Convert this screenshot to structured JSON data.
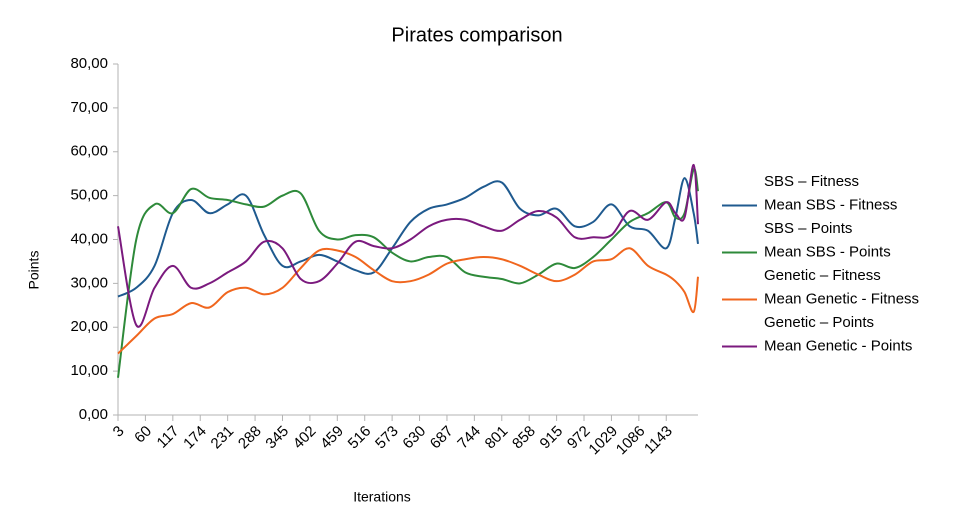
{
  "chart_data": {
    "type": "line",
    "title": "Pirates comparison",
    "x_label": "Iterations",
    "y_label": "Points",
    "x": [
      3,
      41,
      79,
      117,
      155,
      193,
      231,
      269,
      307,
      345,
      383,
      421,
      459,
      497,
      535,
      573,
      611,
      649,
      687,
      725,
      763,
      801,
      839,
      877,
      915,
      953,
      991,
      1029,
      1067,
      1105,
      1143,
      1162,
      1181,
      1200,
      1209
    ],
    "series": [
      {
        "name": "SBS – Fitness",
        "color": "#ffffff",
        "values": [
          null,
          null,
          null,
          null,
          null,
          null,
          null,
          null,
          null,
          null,
          null,
          null,
          null,
          null,
          null,
          null,
          null,
          null,
          null,
          null,
          null,
          null,
          null,
          null,
          null,
          null,
          null,
          null,
          null,
          null,
          null,
          null,
          null,
          null,
          null
        ]
      },
      {
        "name": "Mean SBS - Fitness",
        "color": "#1f5a8f",
        "values": [
          27,
          29,
          34,
          46,
          49,
          46,
          48,
          50,
          41,
          34,
          35,
          36.5,
          35,
          33,
          32.5,
          38,
          44,
          47,
          48,
          49.5,
          52,
          53,
          47,
          45.5,
          47,
          43,
          44,
          48,
          43,
          42,
          38,
          45,
          54,
          46,
          39
        ]
      },
      {
        "name": "SBS – Points",
        "color": "#ffffff",
        "values": [
          null,
          null,
          null,
          null,
          null,
          null,
          null,
          null,
          null,
          null,
          null,
          null,
          null,
          null,
          null,
          null,
          null,
          null,
          null,
          null,
          null,
          null,
          null,
          null,
          null,
          null,
          null,
          null,
          null,
          null,
          null,
          null,
          null,
          null,
          null
        ]
      },
      {
        "name": "Mean SBS - Points",
        "color": "#2e8a3a",
        "values": [
          8.5,
          40,
          48,
          46,
          51.5,
          49.5,
          49,
          48,
          47.5,
          50,
          50.5,
          42,
          40,
          41,
          40.5,
          37,
          35,
          36,
          36,
          32.5,
          31.5,
          31,
          30,
          32,
          34.5,
          33.5,
          36,
          40,
          44,
          46,
          48.5,
          45,
          46,
          56,
          51
        ]
      },
      {
        "name": "Genetic – Fitness",
        "color": "#ffffff",
        "values": [
          null,
          null,
          null,
          null,
          null,
          null,
          null,
          null,
          null,
          null,
          null,
          null,
          null,
          null,
          null,
          null,
          null,
          null,
          null,
          null,
          null,
          null,
          null,
          null,
          null,
          null,
          null,
          null,
          null,
          null,
          null,
          null,
          null,
          null,
          null
        ]
      },
      {
        "name": "Mean Genetic - Fitness",
        "color": "#f0661e",
        "values": [
          14,
          18,
          22,
          23,
          25.5,
          24.5,
          28,
          29,
          27.5,
          29,
          33.5,
          37.5,
          37.5,
          36,
          33,
          30.5,
          30.5,
          32,
          34.5,
          35.5,
          36,
          35.5,
          34,
          32,
          30.5,
          32,
          35,
          35.5,
          38,
          34,
          32,
          30.5,
          28,
          23.5,
          31.5
        ]
      },
      {
        "name": "Genetic – Points",
        "color": "#ffffff",
        "values": [
          null,
          null,
          null,
          null,
          null,
          null,
          null,
          null,
          null,
          null,
          null,
          null,
          null,
          null,
          null,
          null,
          null,
          null,
          null,
          null,
          null,
          null,
          null,
          null,
          null,
          null,
          null,
          null,
          null,
          null,
          null,
          null,
          null,
          null,
          null
        ]
      },
      {
        "name": "Mean Genetic - Points",
        "color": "#7b1a7e",
        "values": [
          43,
          20.5,
          29,
          34,
          29,
          30,
          32.5,
          35,
          39.5,
          38,
          31,
          30.5,
          34.5,
          39.5,
          38.5,
          38,
          40,
          43,
          44.5,
          44.5,
          43,
          42,
          44.5,
          46.5,
          45,
          40.5,
          40.5,
          41,
          46.5,
          44.5,
          48.5,
          46,
          45,
          57,
          43.5
        ]
      }
    ],
    "xlim": [
      3,
      1209
    ],
    "xticks": [
      3,
      60,
      117,
      174,
      231,
      288,
      345,
      402,
      459,
      516,
      573,
      630,
      687,
      744,
      801,
      858,
      915,
      972,
      1029,
      1086,
      1143
    ],
    "ylim": [
      0,
      80
    ],
    "yticks": [
      {
        "value": 0,
        "label": "0,00"
      },
      {
        "value": 10,
        "label": "10,00"
      },
      {
        "value": 20,
        "label": "20,00"
      },
      {
        "value": 30,
        "label": "30,00"
      },
      {
        "value": 40,
        "label": "40,00"
      },
      {
        "value": 50,
        "label": "50,00"
      },
      {
        "value": 60,
        "label": "60,00"
      },
      {
        "value": 70,
        "label": "70,00"
      },
      {
        "value": 80,
        "label": "80,00"
      }
    ],
    "grid": false,
    "legend": "right"
  }
}
